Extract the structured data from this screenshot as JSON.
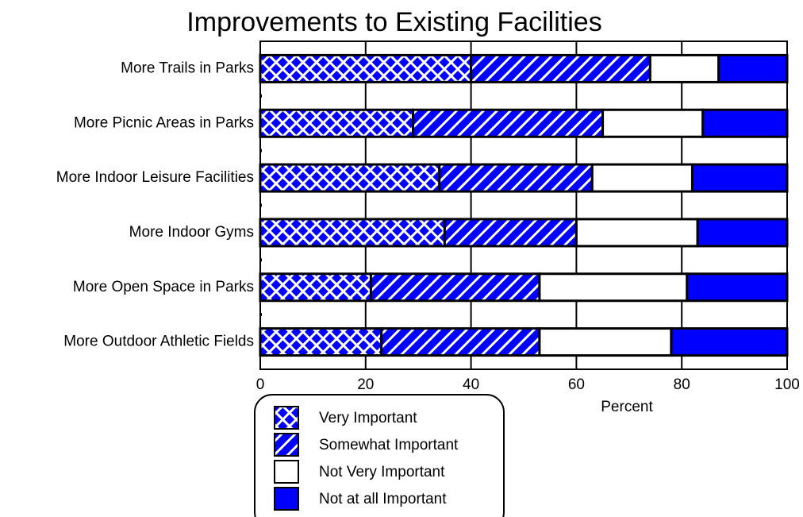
{
  "chart_data": {
    "type": "stacked-bar-horizontal",
    "title": "Improvements to Existing Facilities",
    "xlabel": "Percent",
    "categories": [
      "More Trails in Parks",
      "More Picnic Areas in Parks",
      "More Indoor Leisure Facilities",
      "More Indoor Gyms",
      "More Open Space in Parks",
      "More Outdoor Athletic Fields"
    ],
    "series": [
      {
        "name": "Very Important",
        "color": "#0000ff",
        "pattern": "crosshatch",
        "values": [
          40,
          29,
          34,
          35,
          21,
          23
        ]
      },
      {
        "name": "Somewhat Important",
        "color": "#0000ff",
        "pattern": "diagonal",
        "values": [
          34,
          36,
          29,
          25,
          32,
          30
        ]
      },
      {
        "name": "Not Very Important",
        "color": "#ffffff",
        "pattern": "solid",
        "values": [
          13,
          19,
          19,
          23,
          28,
          25
        ]
      },
      {
        "name": "Not at all Important",
        "color": "#0000ff",
        "pattern": "solid",
        "values": [
          13,
          16,
          18,
          17,
          19,
          22
        ]
      }
    ],
    "xlim": [
      0,
      100
    ],
    "xticks": [
      0,
      20,
      40,
      60,
      80,
      100
    ],
    "grid": true
  }
}
